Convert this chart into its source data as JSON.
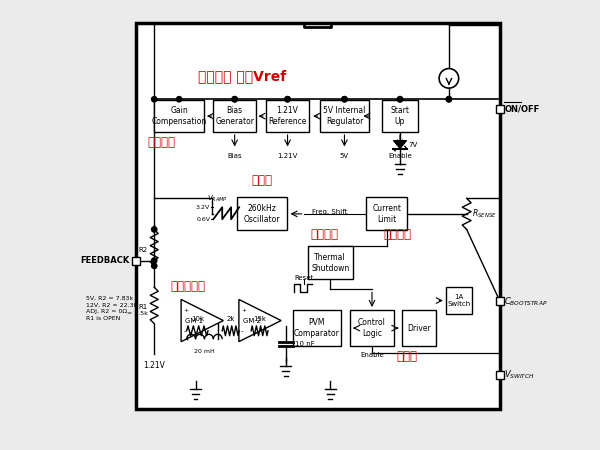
{
  "bg_color": "#ebebeb",
  "box_color": "#ffffff",
  "box_edge": "#000000",
  "line_color": "#000000",
  "red_color": "#cc0000",
  "cn1": "偏置电流 基准Vref",
  "cn2": "增益补偿",
  "cn3": "振荡器",
  "cn4": "温度保护",
  "cn5": "限流保护",
  "cn6": "误差放大器",
  "cn7": "输出级"
}
